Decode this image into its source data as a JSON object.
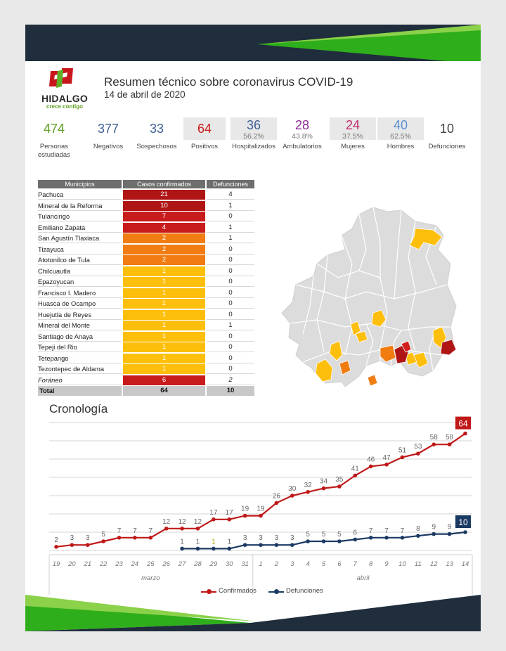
{
  "header": {
    "logo_text": "HIDALGO",
    "logo_tagline": "crece contigo",
    "title": "Resumen técnico sobre coronavirus COVID-19",
    "date": "14 de abril de 2020"
  },
  "colors": {
    "navy": "#1f2d3d",
    "green": "#2fae1b",
    "dark_red": "#b01515",
    "red": "#d21e1e",
    "orange": "#f07c12",
    "yellow": "#fdbf0c",
    "confirmed": "#c01818",
    "deaths": "#1b3a63",
    "stat_green": "#5f9e1f",
    "stat_blue": "#3e5f94",
    "stat_red": "#cc1c1c",
    "stat_purple": "#8a2b8f",
    "stat_pink": "#c12a6b",
    "stat_lightblue": "#5a8fd1"
  },
  "stats": [
    {
      "value": "474",
      "label": "Personas estudiadas",
      "pct": ""
    },
    {
      "value": "377",
      "label": "Negativos",
      "pct": ""
    },
    {
      "value": "33",
      "label": "Sospechosos",
      "pct": ""
    },
    {
      "value": "64",
      "label": "Positivos",
      "pct": ""
    },
    {
      "value": "36",
      "label": "Hospitalizados",
      "pct": "56.2%"
    },
    {
      "value": "28",
      "label": "Ambulatorios",
      "pct": "43.8%"
    },
    {
      "value": "24",
      "label": "Mujeres",
      "pct": "37.5%"
    },
    {
      "value": "40",
      "label": "Hombres",
      "pct": "62.5%"
    },
    {
      "value": "10",
      "label": "Defunciones",
      "pct": ""
    }
  ],
  "table": {
    "headers": [
      "Municipios",
      "Casos confirmados",
      "Defunciones"
    ],
    "rows": [
      {
        "name": "Pachuca",
        "cases": "21",
        "deaths": "4",
        "color": "#b01515"
      },
      {
        "name": "Mineral de la Reforma",
        "cases": "10",
        "deaths": "1",
        "color": "#b01515"
      },
      {
        "name": "Tulancingo",
        "cases": "7",
        "deaths": "0",
        "color": "#c81c1c"
      },
      {
        "name": "Emiliano Zapata",
        "cases": "4",
        "deaths": "1",
        "color": "#c81c1c"
      },
      {
        "name": "San Agustín Tlaxiaca",
        "cases": "2",
        "deaths": "1",
        "color": "#f07c12"
      },
      {
        "name": "Tizayuca",
        "cases": "2",
        "deaths": "0",
        "color": "#f07c12"
      },
      {
        "name": "Atotonilco de Tula",
        "cases": "2",
        "deaths": "0",
        "color": "#f07c12"
      },
      {
        "name": "Chilcuautla",
        "cases": "1",
        "deaths": "0",
        "color": "#fdbf0c"
      },
      {
        "name": "Epazoyucan",
        "cases": "1",
        "deaths": "0",
        "color": "#fdbf0c"
      },
      {
        "name": "Francisco I. Madero",
        "cases": "1",
        "deaths": "0",
        "color": "#fdbf0c"
      },
      {
        "name": "Huasca de Ocampo",
        "cases": "1",
        "deaths": "0",
        "color": "#fdbf0c"
      },
      {
        "name": "Huejutla de Reyes",
        "cases": "1",
        "deaths": "0",
        "color": "#fdbf0c"
      },
      {
        "name": "Mineral del Monte",
        "cases": "1",
        "deaths": "1",
        "color": "#fdbf0c"
      },
      {
        "name": "Santiago de Anaya",
        "cases": "1",
        "deaths": "0",
        "color": "#fdbf0c"
      },
      {
        "name": "Tepeji del Rio",
        "cases": "1",
        "deaths": "0",
        "color": "#fdbf0c"
      },
      {
        "name": "Tetepango",
        "cases": "1",
        "deaths": "0",
        "color": "#fdbf0c"
      },
      {
        "name": "Tezontepec de Aldama",
        "cases": "1",
        "deaths": "0",
        "color": "#fdbf0c"
      },
      {
        "name": "Foráneo",
        "cases": "6",
        "deaths": "2",
        "color": "#c81c1c"
      }
    ],
    "total": {
      "name": "Total",
      "cases": "64",
      "deaths": "10"
    }
  },
  "chronology_title": "Cronología",
  "chart_data": {
    "type": "line",
    "x": [
      "19",
      "20",
      "21",
      "22",
      "23",
      "24",
      "25",
      "26",
      "27",
      "28",
      "29",
      "30",
      "31",
      "1",
      "2",
      "3",
      "4",
      "5",
      "6",
      "7",
      "8",
      "9",
      "10",
      "11",
      "12",
      "13",
      "14"
    ],
    "month_labels": [
      {
        "label": "marzo",
        "from": 0,
        "to": 12
      },
      {
        "label": "abril",
        "from": 13,
        "to": 26
      }
    ],
    "series": [
      {
        "name": "Confirmados",
        "color": "#c01818",
        "values": [
          2,
          3,
          3,
          5,
          7,
          7,
          7,
          12,
          12,
          12,
          17,
          17,
          19,
          19,
          26,
          30,
          32,
          34,
          35,
          41,
          46,
          47,
          51,
          53,
          58,
          58,
          64
        ]
      },
      {
        "name": "Defunciones",
        "color": "#1b3a63",
        "values": [
          null,
          null,
          null,
          null,
          null,
          null,
          null,
          null,
          1,
          1,
          1,
          1,
          3,
          3,
          3,
          3,
          5,
          5,
          5,
          6,
          7,
          7,
          7,
          8,
          9,
          9,
          10
        ]
      }
    ],
    "ylim": [
      0,
      70
    ],
    "grid": true,
    "legend": "bottom"
  }
}
